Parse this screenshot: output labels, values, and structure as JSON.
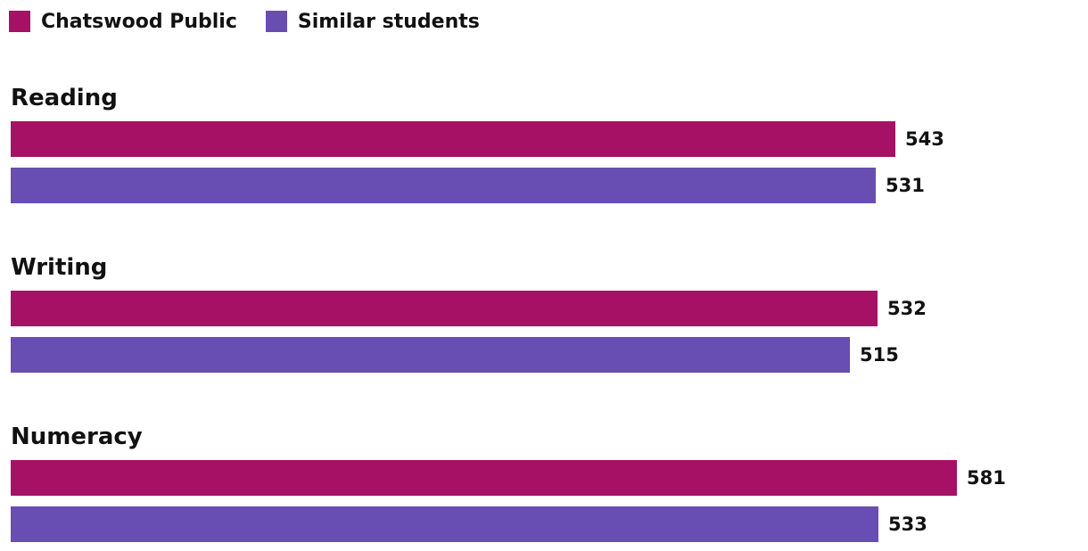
{
  "chart_data": {
    "type": "bar",
    "orientation": "horizontal",
    "categories": [
      "Reading",
      "Writing",
      "Numeracy"
    ],
    "series": [
      {
        "name": "Chatswood Public",
        "color": "#a61166",
        "values": [
          543,
          532,
          581
        ]
      },
      {
        "name": "Similar students",
        "color": "#684eb3",
        "values": [
          531,
          515,
          533
        ]
      }
    ],
    "xlim": [
      0,
      587
    ],
    "grid": false,
    "legend_position": "top-left"
  }
}
